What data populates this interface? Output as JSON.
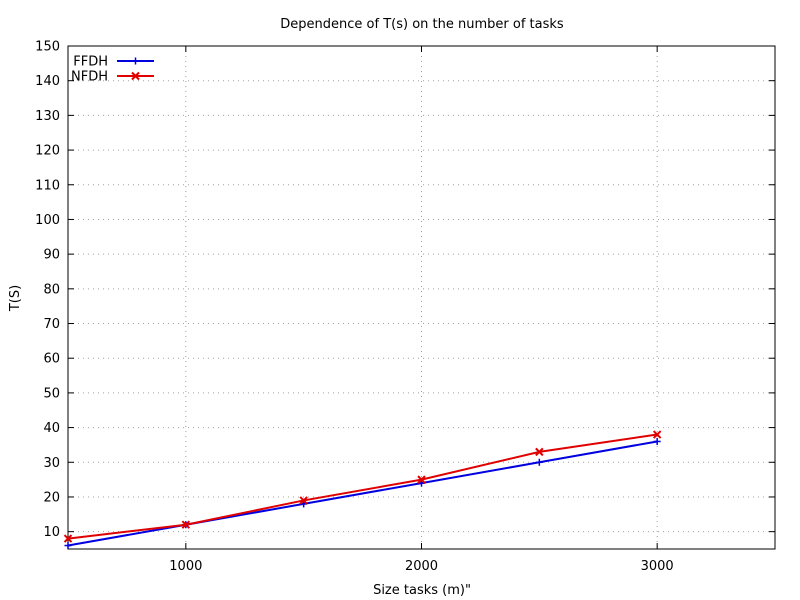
{
  "chart_data": {
    "type": "line",
    "title": "Dependence of T(s) on the number of tasks",
    "xlabel": "Size tasks (m)\"",
    "ylabel": "T(S)",
    "xlim": [
      500,
      3500
    ],
    "ylim": [
      5,
      150
    ],
    "xticks": [
      1000,
      2000,
      3000
    ],
    "yticks": [
      10,
      20,
      30,
      40,
      50,
      60,
      70,
      80,
      90,
      100,
      110,
      120,
      130,
      140,
      150
    ],
    "grid": true,
    "legend_position": "top-left",
    "series": [
      {
        "name": "FFDH",
        "color": "#0000e0",
        "marker": "plus",
        "x": [
          500,
          1000,
          1500,
          2000,
          2500,
          3000
        ],
        "y": [
          6,
          12,
          18,
          24,
          30,
          36
        ]
      },
      {
        "name": "NFDH",
        "color": "#e00000",
        "marker": "cross",
        "x": [
          500,
          1000,
          1500,
          2000,
          2500,
          3000
        ],
        "y": [
          8,
          12,
          19,
          25,
          33,
          38
        ]
      }
    ]
  }
}
